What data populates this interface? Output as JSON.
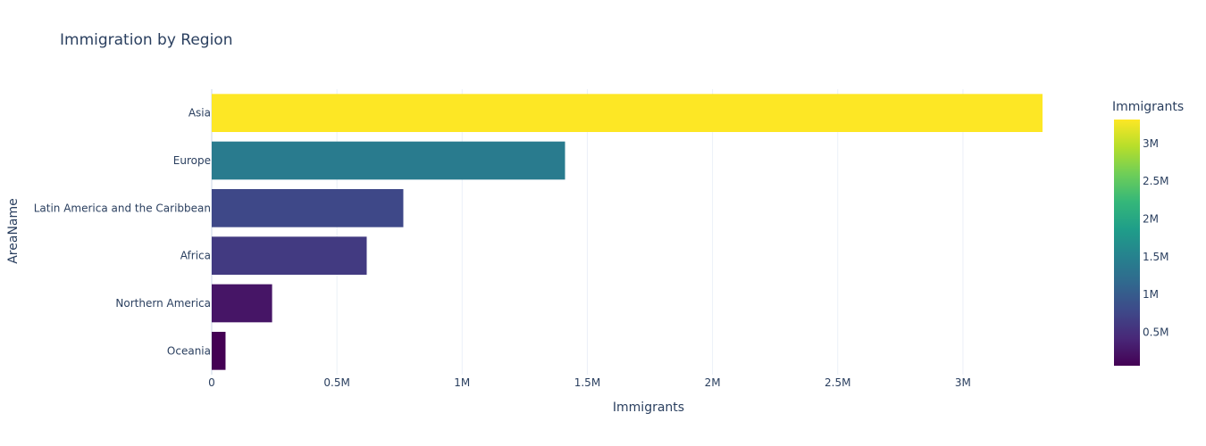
{
  "chart_data": {
    "type": "bar",
    "orientation": "horizontal",
    "title": "Immigration by Region",
    "xlabel": "Immigrants",
    "ylabel": "AreaName",
    "categories": [
      "Asia",
      "Europe",
      "Latin America and the Caribbean",
      "Africa",
      "Northern America",
      "Oceania"
    ],
    "values": [
      3317794,
      1410947,
      765148,
      618948,
      241142,
      55174
    ],
    "xlim": [
      0,
      3317794
    ],
    "x_ticks": [
      0,
      500000,
      1000000,
      1500000,
      2000000,
      2500000,
      3000000
    ],
    "x_tick_labels": [
      "0",
      "0.5M",
      "1M",
      "1.5M",
      "2M",
      "2.5M",
      "3M"
    ],
    "grid": true,
    "legend": "none",
    "colorbar": {
      "title": "Immigrants",
      "colorscale": "Viridis",
      "range": [
        55174,
        3317794
      ],
      "ticks": [
        500000,
        1000000,
        1500000,
        2000000,
        2500000,
        3000000
      ],
      "tick_labels": [
        "0.5M",
        "1M",
        "1.5M",
        "2M",
        "2.5M",
        "3M"
      ],
      "placement": "right"
    },
    "colors": {
      "viridis": [
        "#440154",
        "#482878",
        "#3e4989",
        "#31688e",
        "#26828e",
        "#1f9e89",
        "#35b779",
        "#6ece58",
        "#b5de2b",
        "#fde725"
      ],
      "text": "#2a3f5f",
      "grid": "#ebf0f8"
    }
  }
}
